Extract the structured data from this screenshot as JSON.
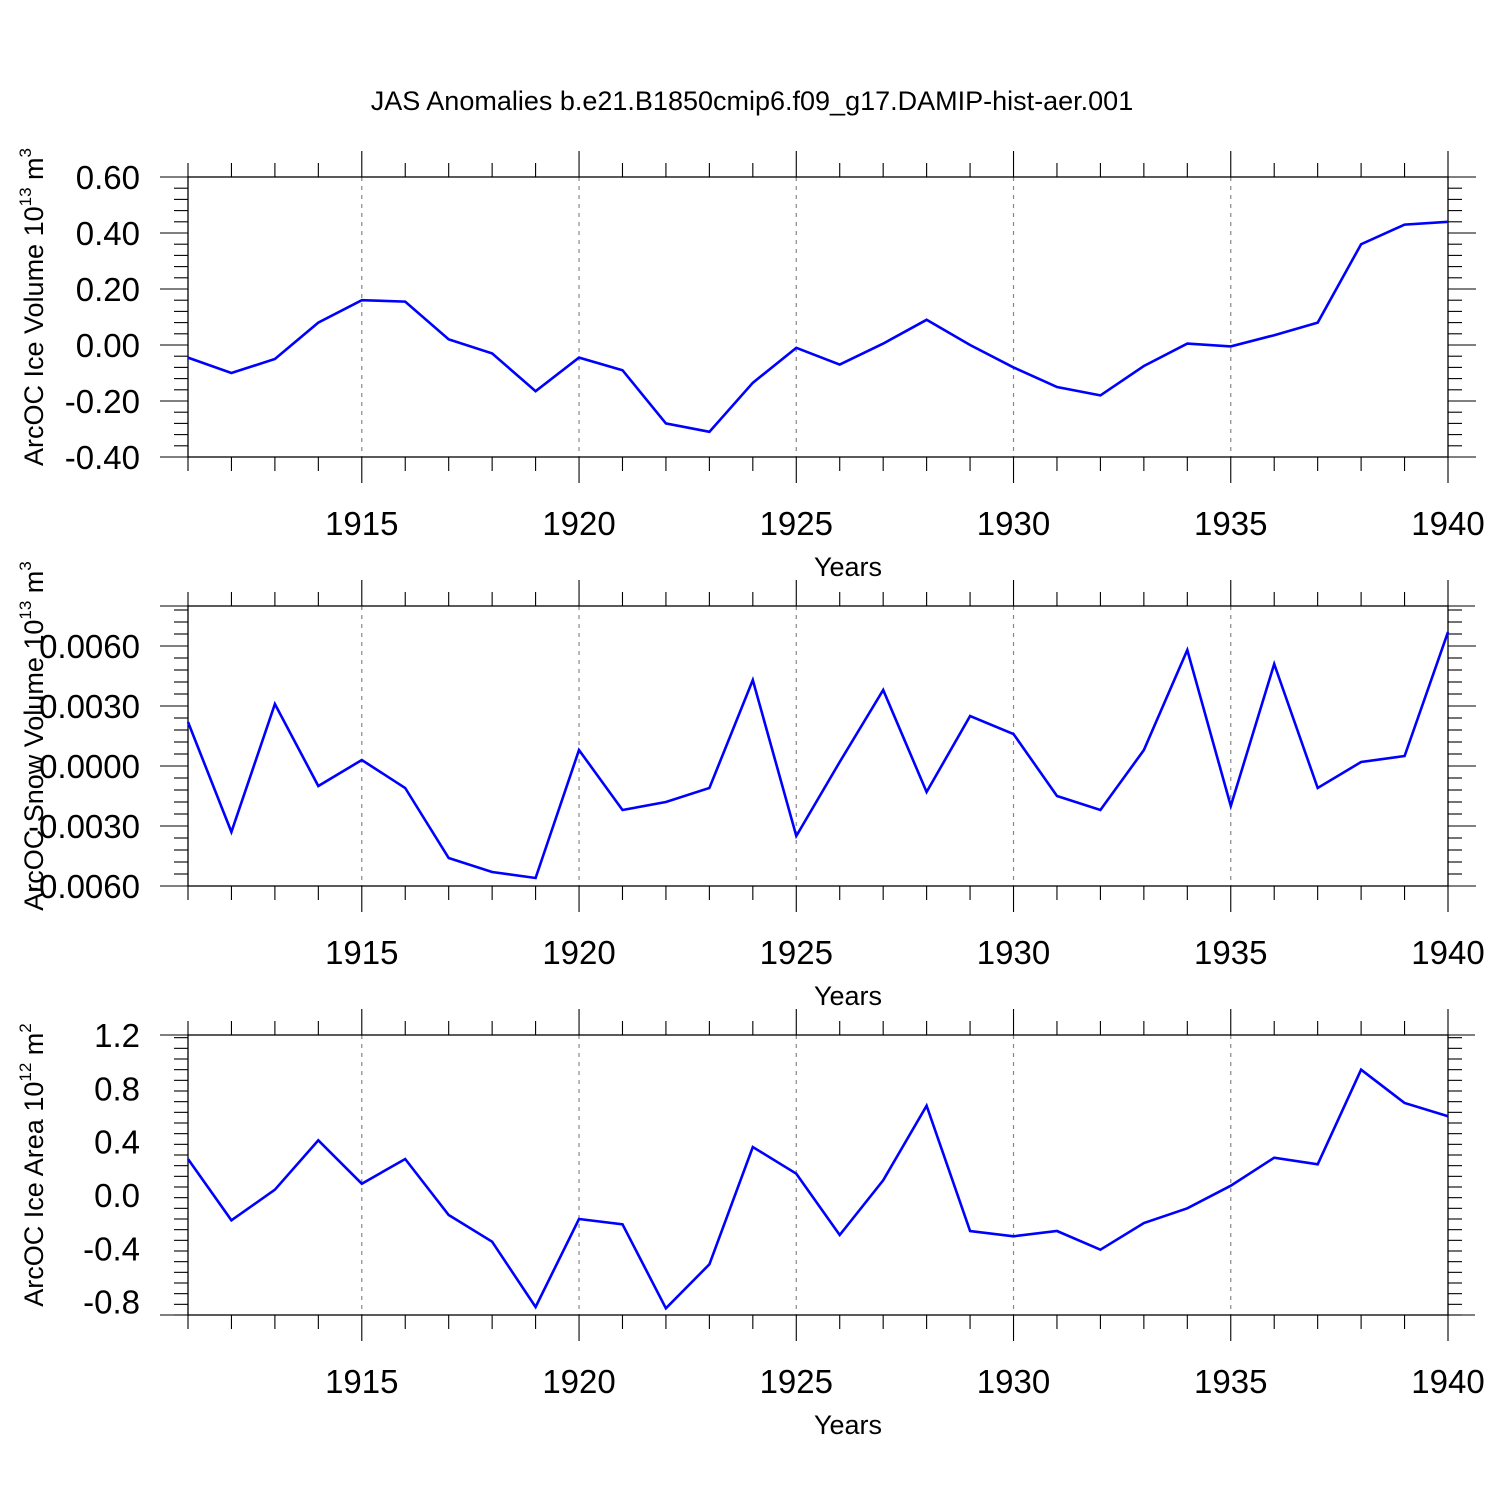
{
  "title": "JAS Anomalies b.e21.B1850cmip6.f09_g17.DAMIP-hist-aer.001",
  "colors": {
    "series": "#0000ff",
    "grid": "#888888"
  },
  "chart_data": [
    {
      "type": "line",
      "ylabel": {
        "text": "ArcOC Ice Volume 10",
        "sup": "13",
        "tail": " m",
        "sup2": "3"
      },
      "xlabel": "Years",
      "xlim": [
        1911,
        1940
      ],
      "ylim": [
        -0.4,
        0.6
      ],
      "yticks": [
        -0.4,
        -0.2,
        0.0,
        0.2,
        0.4,
        0.6
      ],
      "yticklabels": [
        "-0.40",
        "-0.20",
        "0.00",
        "0.20",
        "0.40",
        "0.60"
      ],
      "xticks": [
        1915,
        1920,
        1925,
        1930,
        1935,
        1940
      ],
      "xticklabels": [
        "1915",
        "1920",
        "1925",
        "1930",
        "1935",
        "1940"
      ],
      "grid": "vertical-dashed",
      "x": [
        1911,
        1912,
        1913,
        1914,
        1915,
        1916,
        1917,
        1918,
        1919,
        1920,
        1921,
        1922,
        1923,
        1924,
        1925,
        1926,
        1927,
        1928,
        1929,
        1930,
        1931,
        1932,
        1933,
        1934,
        1935,
        1936,
        1937,
        1938,
        1939,
        1940
      ],
      "y": [
        -0.045,
        -0.1,
        -0.05,
        0.08,
        0.16,
        0.155,
        0.02,
        -0.03,
        -0.165,
        -0.045,
        -0.09,
        -0.28,
        -0.31,
        -0.135,
        -0.01,
        -0.07,
        0.005,
        0.09,
        0.0,
        -0.08,
        -0.15,
        -0.18,
        -0.075,
        0.005,
        -0.005,
        0.035,
        0.08,
        0.36,
        0.43,
        0.44
      ]
    },
    {
      "type": "line",
      "ylabel": {
        "text": "ArcOC Snow Volume 10",
        "sup": "13",
        "tail": " m",
        "sup2": "3"
      },
      "xlabel": "Years",
      "xlim": [
        1911,
        1940
      ],
      "ylim": [
        -0.006,
        0.008
      ],
      "yticks": [
        -0.006,
        -0.003,
        0.0,
        0.003,
        0.006
      ],
      "yticklabels": [
        "-0.0060",
        "-0.0030",
        "0.0000",
        "0.0030",
        "0.0060"
      ],
      "xticks": [
        1915,
        1920,
        1925,
        1930,
        1935,
        1940
      ],
      "xticklabels": [
        "1915",
        "1920",
        "1925",
        "1930",
        "1935",
        "1940"
      ],
      "grid": "vertical-dashed",
      "x": [
        1911,
        1912,
        1913,
        1914,
        1915,
        1916,
        1917,
        1918,
        1919,
        1920,
        1921,
        1922,
        1923,
        1924,
        1925,
        1926,
        1927,
        1928,
        1929,
        1930,
        1931,
        1932,
        1933,
        1934,
        1935,
        1936,
        1937,
        1938,
        1939,
        1940
      ],
      "y": [
        0.0022,
        -0.0033,
        0.0031,
        -0.001,
        0.0003,
        -0.0011,
        -0.0046,
        -0.0053,
        -0.0056,
        0.0008,
        -0.0022,
        -0.0018,
        -0.0011,
        0.0043,
        -0.0035,
        0.0002,
        0.0038,
        -0.0013,
        0.0025,
        0.0016,
        -0.0015,
        -0.0022,
        0.0008,
        0.0058,
        -0.002,
        0.0051,
        -0.0011,
        0.0002,
        0.0005,
        0.0067
      ]
    },
    {
      "type": "line",
      "ylabel": {
        "text": "ArcOC Ice Area 10",
        "sup": "12",
        "tail": " m",
        "sup2": "2"
      },
      "xlabel": "Years",
      "xlim": [
        1911,
        1940
      ],
      "ylim": [
        -0.9,
        1.2
      ],
      "yticks": [
        -0.8,
        -0.4,
        0.0,
        0.4,
        0.8,
        1.2
      ],
      "yticklabels": [
        "-0.8",
        "-0.4",
        "0.0",
        "0.4",
        "0.8",
        "1.2"
      ],
      "xticks": [
        1915,
        1920,
        1925,
        1930,
        1935,
        1940
      ],
      "xticklabels": [
        "1915",
        "1920",
        "1925",
        "1930",
        "1935",
        "1940"
      ],
      "grid": "vertical-dashed",
      "x": [
        1911,
        1912,
        1913,
        1914,
        1915,
        1916,
        1917,
        1918,
        1919,
        1920,
        1921,
        1922,
        1923,
        1924,
        1925,
        1926,
        1927,
        1928,
        1929,
        1930,
        1931,
        1932,
        1933,
        1934,
        1935,
        1936,
        1937,
        1938,
        1939,
        1940
      ],
      "y": [
        0.27,
        -0.19,
        0.04,
        0.41,
        0.085,
        0.27,
        -0.15,
        -0.35,
        -0.84,
        -0.18,
        -0.22,
        -0.85,
        -0.52,
        0.36,
        0.16,
        -0.3,
        0.11,
        0.67,
        -0.27,
        -0.31,
        -0.27,
        -0.41,
        -0.21,
        -0.1,
        0.07,
        0.28,
        0.23,
        0.94,
        0.69,
        0.59
      ]
    }
  ]
}
